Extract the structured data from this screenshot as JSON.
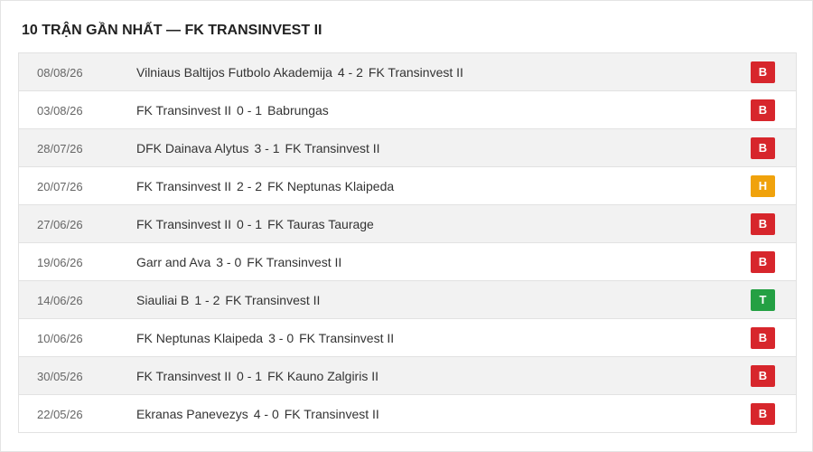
{
  "header": {
    "title": "10 TRẬN GẦN NHẤT — FK TRANSINVEST II"
  },
  "table": {
    "rows": [
      {
        "date": "08/08/26",
        "home": "Vilniaus Baltijos Futbolo Akademija",
        "score": "4 - 2",
        "away": "FK Transinvest II",
        "result": "B"
      },
      {
        "date": "03/08/26",
        "home": "FK Transinvest II",
        "score": "0 - 1",
        "away": "Babrungas",
        "result": "B"
      },
      {
        "date": "28/07/26",
        "home": "DFK Dainava Alytus",
        "score": "3 - 1",
        "away": "FK Transinvest II",
        "result": "B"
      },
      {
        "date": "20/07/26",
        "home": "FK Transinvest II",
        "score": "2 - 2",
        "away": "FK Neptunas Klaipeda",
        "result": "H"
      },
      {
        "date": "27/06/26",
        "home": "FK Transinvest II",
        "score": "0 - 1",
        "away": "FK Tauras Taurage",
        "result": "B"
      },
      {
        "date": "19/06/26",
        "home": "Garr and Ava",
        "score": "3 - 0",
        "away": "FK Transinvest II",
        "result": "B"
      },
      {
        "date": "14/06/26",
        "home": "Siauliai B",
        "score": "1 - 2",
        "away": "FK Transinvest II",
        "result": "T"
      },
      {
        "date": "10/06/26",
        "home": "FK Neptunas Klaipeda",
        "score": "3 - 0",
        "away": "FK Transinvest II",
        "result": "B"
      },
      {
        "date": "30/05/26",
        "home": "FK Transinvest II",
        "score": "0 - 1",
        "away": "FK Kauno Zalgiris II",
        "result": "B"
      },
      {
        "date": "22/05/26",
        "home": "Ekranas Panevezys",
        "score": "4 - 0",
        "away": "FK Transinvest II",
        "result": "B"
      }
    ]
  }
}
